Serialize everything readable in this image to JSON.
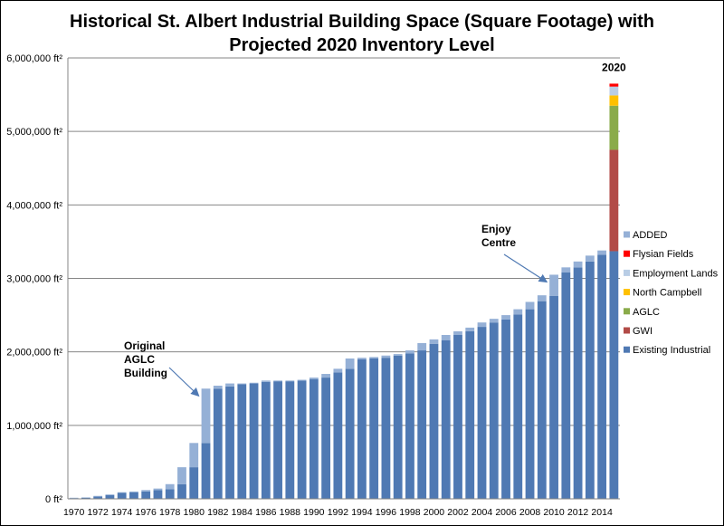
{
  "chart_data": {
    "type": "bar",
    "stacked": true,
    "title_lines": [
      "Historical St. Albert Industrial Building Space (Square Footage) with",
      "Projected 2020 Inventory Level"
    ],
    "xlabel": "",
    "ylabel": "",
    "ylim": [
      0,
      6000000
    ],
    "y_ticks": [
      0,
      1000000,
      2000000,
      3000000,
      4000000,
      5000000,
      6000000
    ],
    "y_tick_labels": [
      "0 ft²",
      "1,000,000 ft²",
      "2,000,000 ft²",
      "3,000,000 ft²",
      "4,000,000 ft²",
      "5,000,000 ft²",
      "6,000,000 ft²"
    ],
    "gridlines": true,
    "legend_position": "right",
    "categories": [
      "1970",
      "1971",
      "1972",
      "1973",
      "1974",
      "1975",
      "1976",
      "1977",
      "1978",
      "1979",
      "1980",
      "1981",
      "1982",
      "1983",
      "1984",
      "1985",
      "1986",
      "1987",
      "1988",
      "1989",
      "1990",
      "1991",
      "1992",
      "1993",
      "1994",
      "1995",
      "1996",
      "1997",
      "1998",
      "1999",
      "2000",
      "2001",
      "2002",
      "2003",
      "2004",
      "2005",
      "2006",
      "2007",
      "2008",
      "2009",
      "2010",
      "2011",
      "2012",
      "2013",
      "2014",
      "2020"
    ],
    "x_tick_labels": [
      "1970",
      "1972",
      "1974",
      "1976",
      "1978",
      "1980",
      "1982",
      "1984",
      "1986",
      "1988",
      "1990",
      "1992",
      "1994",
      "1996",
      "1998",
      "2000",
      "2002",
      "2004",
      "2006",
      "2008",
      "2010",
      "2012",
      "2014"
    ],
    "projected_label": "2020",
    "series": [
      {
        "name": "Existing Industrial",
        "color": "#4f79b3",
        "values": [
          10000,
          15000,
          30000,
          50000,
          80000,
          90000,
          100000,
          120000,
          130000,
          200000,
          430000,
          760000,
          1500000,
          1530000,
          1560000,
          1570000,
          1590000,
          1600000,
          1600000,
          1610000,
          1630000,
          1650000,
          1720000,
          1770000,
          1900000,
          1910000,
          1920000,
          1950000,
          1980000,
          2020000,
          2110000,
          2160000,
          2230000,
          2280000,
          2340000,
          2400000,
          2440000,
          2510000,
          2580000,
          2690000,
          2760000,
          3080000,
          3150000,
          3230000,
          3320000,
          3370000
        ]
      },
      {
        "name": "GWI",
        "color": "#b24b47",
        "values": [
          0,
          0,
          0,
          0,
          0,
          0,
          0,
          0,
          0,
          0,
          0,
          0,
          0,
          0,
          0,
          0,
          0,
          0,
          0,
          0,
          0,
          0,
          0,
          0,
          0,
          0,
          0,
          0,
          0,
          0,
          0,
          0,
          0,
          0,
          0,
          0,
          0,
          0,
          0,
          0,
          0,
          0,
          0,
          0,
          0,
          1380000
        ]
      },
      {
        "name": "AGLC",
        "color": "#8aab4a",
        "values": [
          0,
          0,
          0,
          0,
          0,
          0,
          0,
          0,
          0,
          0,
          0,
          0,
          0,
          0,
          0,
          0,
          0,
          0,
          0,
          0,
          0,
          0,
          0,
          0,
          0,
          0,
          0,
          0,
          0,
          0,
          0,
          0,
          0,
          0,
          0,
          0,
          0,
          0,
          0,
          0,
          0,
          0,
          0,
          0,
          0,
          600000
        ]
      },
      {
        "name": "North Campbell",
        "color": "#ffc000",
        "values": [
          0,
          0,
          0,
          0,
          0,
          0,
          0,
          0,
          0,
          0,
          0,
          0,
          0,
          0,
          0,
          0,
          0,
          0,
          0,
          0,
          0,
          0,
          0,
          0,
          0,
          0,
          0,
          0,
          0,
          0,
          0,
          0,
          0,
          0,
          0,
          0,
          0,
          0,
          0,
          0,
          0,
          0,
          0,
          0,
          0,
          140000
        ]
      },
      {
        "name": "Employment Lands",
        "color": "#b9cde5",
        "values": [
          0,
          0,
          0,
          0,
          0,
          0,
          0,
          0,
          0,
          0,
          0,
          0,
          0,
          0,
          0,
          0,
          0,
          0,
          0,
          0,
          0,
          0,
          0,
          0,
          0,
          0,
          0,
          0,
          0,
          0,
          0,
          0,
          0,
          0,
          0,
          0,
          0,
          0,
          0,
          0,
          0,
          0,
          0,
          0,
          0,
          120000
        ]
      },
      {
        "name": "Flysian Fields",
        "color": "#ff0000",
        "values": [
          0,
          0,
          0,
          0,
          0,
          0,
          0,
          0,
          0,
          0,
          0,
          0,
          0,
          0,
          0,
          0,
          0,
          0,
          0,
          0,
          0,
          0,
          0,
          0,
          0,
          0,
          0,
          0,
          0,
          0,
          0,
          0,
          0,
          0,
          0,
          0,
          0,
          0,
          0,
          0,
          0,
          0,
          0,
          0,
          0,
          40000
        ]
      },
      {
        "name": "ADDED",
        "color": "#95b0d6",
        "values": [
          5000,
          5000,
          10000,
          10000,
          10000,
          10000,
          20000,
          20000,
          70000,
          230000,
          330000,
          740000,
          40000,
          40000,
          10000,
          10000,
          20000,
          10000,
          10000,
          10000,
          20000,
          50000,
          50000,
          140000,
          20000,
          20000,
          30000,
          20000,
          40000,
          100000,
          60000,
          70000,
          50000,
          50000,
          60000,
          50000,
          60000,
          70000,
          100000,
          80000,
          290000,
          70000,
          80000,
          80000,
          60000,
          0
        ]
      }
    ],
    "legend_order": [
      "ADDED",
      "Flysian Fields",
      "Employment Lands",
      "North Campbell",
      "AGLC",
      "GWI",
      "Existing Industrial"
    ],
    "annotations": [
      {
        "lines": [
          "Original",
          "AGLC",
          "Building"
        ],
        "target_category": "1981"
      },
      {
        "lines": [
          "Enjoy",
          "Centre"
        ],
        "target_category": "2010"
      }
    ]
  }
}
